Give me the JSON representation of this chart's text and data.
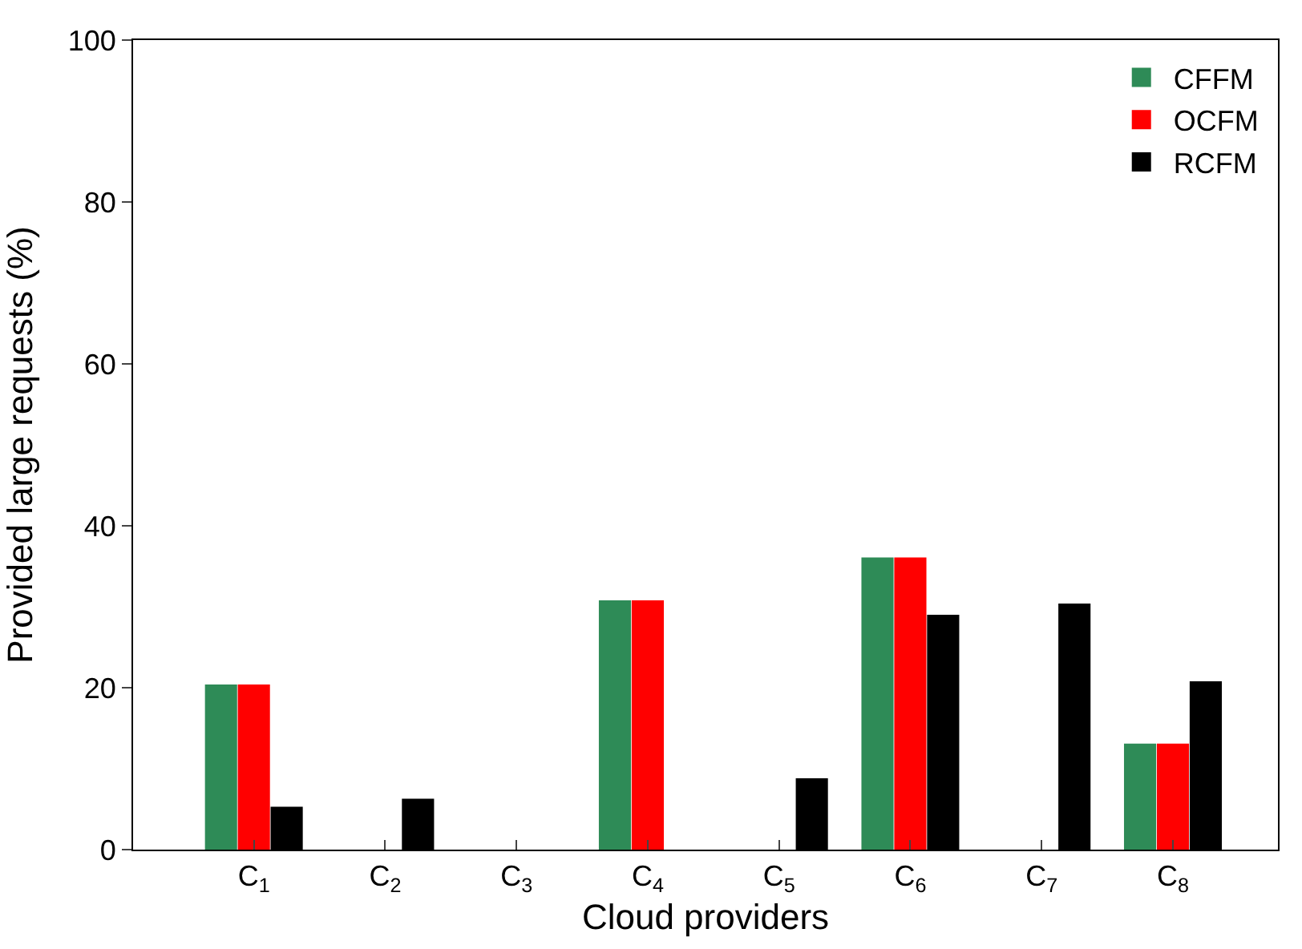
{
  "chart_data": {
    "type": "bar",
    "xlabel": "Cloud providers",
    "ylabel": "Provided large requests (%)",
    "categories": [
      "C$_{1}$",
      "C$_{2}$",
      "C$_{3}$",
      "C$_{4}$",
      "C$_{5}$",
      "C$_{6}$",
      "C$_{7}$",
      "C$_{8}$"
    ],
    "series": [
      {
        "name": "CFFM",
        "color": "#2e8b57",
        "values": [
          20.4,
          0,
          0,
          30.8,
          0,
          36.1,
          0,
          13.1
        ]
      },
      {
        "name": "OCFM",
        "color": "#ff0000",
        "values": [
          20.4,
          0,
          0,
          30.8,
          0,
          36.1,
          0,
          13.1
        ]
      },
      {
        "name": "RCFM",
        "color": "#000000",
        "values": [
          5.3,
          6.3,
          0,
          0,
          8.8,
          29.0,
          30.4,
          20.8
        ]
      }
    ],
    "ylim": [
      0,
      100
    ],
    "yticks": [
      0,
      20,
      40,
      60,
      80,
      100
    ],
    "legend": "top right"
  }
}
